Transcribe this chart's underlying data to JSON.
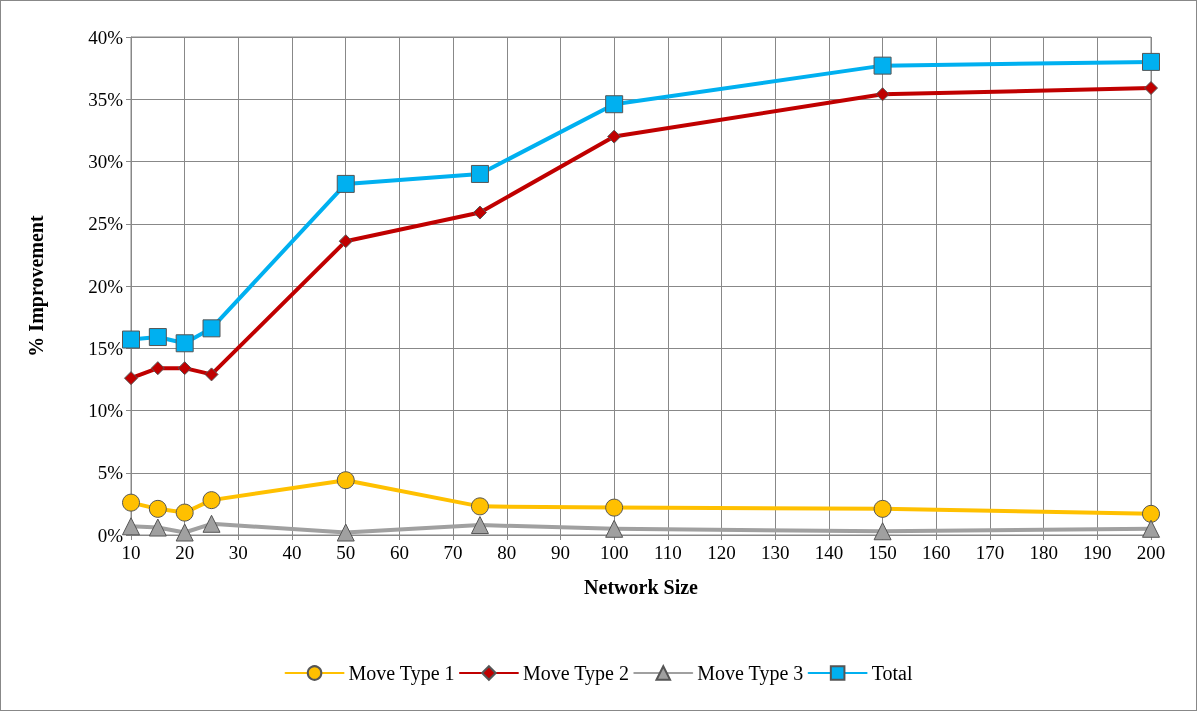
{
  "chart_data": {
    "type": "line",
    "xlabel": "Network Size",
    "ylabel": "% Improvement",
    "x": [
      10,
      15,
      20,
      25,
      50,
      75,
      100,
      150,
      200
    ],
    "series": [
      {
        "name": "Move Type 1",
        "color": "#ffc000",
        "marker": "circle",
        "values": [
          2.6,
          2.1,
          1.8,
          2.8,
          4.4,
          2.3,
          2.2,
          2.1,
          1.7
        ]
      },
      {
        "name": "Move Type 2",
        "color": "#c00000",
        "marker": "diamond",
        "values": [
          12.6,
          13.4,
          13.4,
          12.9,
          23.6,
          25.9,
          32.0,
          35.4,
          35.9
        ]
      },
      {
        "name": "Move Type 3",
        "color": "#a0a0a0",
        "marker": "triangle",
        "values": [
          0.7,
          0.6,
          0.2,
          0.9,
          0.2,
          0.8,
          0.5,
          0.3,
          0.5
        ]
      },
      {
        "name": "Total",
        "color": "#00b0f0",
        "marker": "square",
        "values": [
          15.7,
          15.9,
          15.4,
          16.6,
          28.2,
          29.0,
          34.6,
          37.7,
          38.0
        ]
      }
    ],
    "xlim": [
      10,
      200
    ],
    "xticks": [
      10,
      20,
      30,
      40,
      50,
      60,
      70,
      80,
      90,
      100,
      110,
      120,
      130,
      140,
      150,
      160,
      170,
      180,
      190,
      200
    ],
    "ylim": [
      0,
      40
    ],
    "yticks": [
      {
        "value": 0,
        "label": "0%"
      },
      {
        "value": 5,
        "label": "5%"
      },
      {
        "value": 10,
        "label": "10%"
      },
      {
        "value": 15,
        "label": "15%"
      },
      {
        "value": 20,
        "label": "20%"
      },
      {
        "value": 25,
        "label": "25%"
      },
      {
        "value": 30,
        "label": "30%"
      },
      {
        "value": 35,
        "label": "35%"
      },
      {
        "value": 40,
        "label": "40%"
      }
    ],
    "grid": true,
    "legend": "bottom",
    "line_style": "solid"
  }
}
